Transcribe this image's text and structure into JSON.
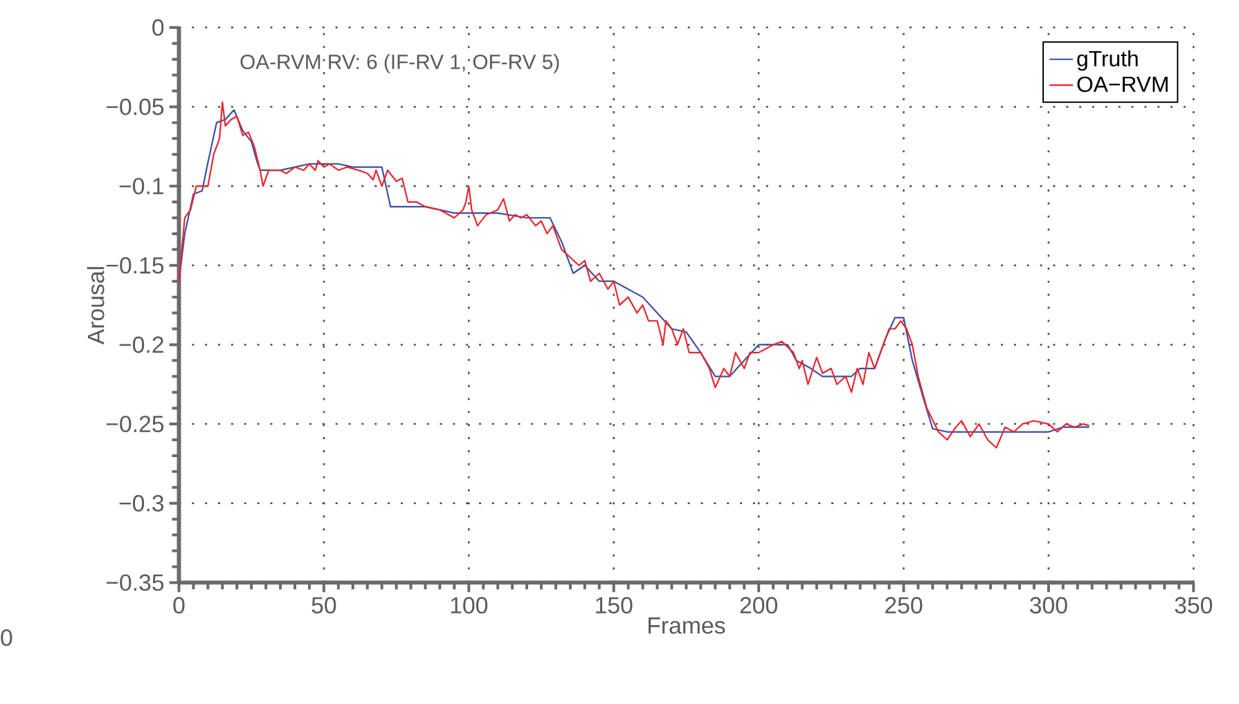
{
  "chart_data": {
    "type": "line",
    "xlabel": "Frames",
    "ylabel": "Arousal",
    "annotations": [
      "OA-RVM RV: 6 (IF-RV 1, OF-RV  5)",
      "0"
    ],
    "xlim": [
      0,
      350
    ],
    "xticks": [
      0,
      50,
      100,
      150,
      200,
      250,
      300,
      350
    ],
    "ylim": [
      -0.35,
      0
    ],
    "yticks": [
      {
        "value": -0.35,
        "label": "−0.35"
      },
      {
        "value": -0.3,
        "label": "−0.3"
      },
      {
        "value": -0.25,
        "label": "−0.25"
      },
      {
        "value": -0.2,
        "label": "−0.2"
      },
      {
        "value": -0.15,
        "label": "−0.15"
      },
      {
        "value": -0.1,
        "label": "−0.1"
      },
      {
        "value": -0.05,
        "label": "−0.05"
      },
      0
    ],
    "grid": true,
    "legend": "top right",
    "series": [
      {
        "name": "gTruth",
        "color": "#3a4fa8",
        "x": [
          0,
          2,
          5,
          8,
          10,
          13,
          16,
          19,
          22,
          25,
          27,
          28,
          35,
          40,
          45,
          55,
          60,
          70,
          73,
          85,
          95,
          110,
          120,
          128,
          132,
          136,
          140,
          145,
          150,
          155,
          160,
          165,
          170,
          175,
          180,
          185,
          190,
          195,
          200,
          210,
          213,
          218,
          222,
          232,
          235,
          240,
          244,
          247,
          250,
          253,
          257,
          260,
          265,
          300,
          305,
          314
        ],
        "values": [
          -0.16,
          -0.13,
          -0.105,
          -0.103,
          -0.085,
          -0.06,
          -0.058,
          -0.052,
          -0.065,
          -0.072,
          -0.085,
          -0.09,
          -0.09,
          -0.088,
          -0.086,
          -0.086,
          -0.088,
          -0.088,
          -0.113,
          -0.113,
          -0.117,
          -0.117,
          -0.12,
          -0.12,
          -0.135,
          -0.155,
          -0.15,
          -0.16,
          -0.16,
          -0.165,
          -0.17,
          -0.18,
          -0.19,
          -0.192,
          -0.205,
          -0.22,
          -0.22,
          -0.21,
          -0.2,
          -0.2,
          -0.21,
          -0.215,
          -0.22,
          -0.22,
          -0.215,
          -0.215,
          -0.195,
          -0.183,
          -0.183,
          -0.21,
          -0.235,
          -0.253,
          -0.255,
          -0.255,
          -0.252,
          -0.252
        ]
      },
      {
        "name": "OA−RVM",
        "color": "#e8262e",
        "x": [
          0,
          2,
          4,
          6,
          10,
          12,
          14,
          15,
          16,
          18,
          20,
          22,
          24,
          26,
          28,
          29,
          31,
          35,
          37,
          40,
          43,
          45,
          47,
          48,
          50,
          52,
          55,
          58,
          62,
          65,
          67,
          68,
          70,
          72,
          75,
          77,
          79,
          82,
          85,
          90,
          95,
          98,
          99,
          100,
          101,
          103,
          106,
          110,
          112,
          114,
          116,
          118,
          120,
          123,
          125,
          127,
          129,
          132,
          135,
          138,
          140,
          142,
          145,
          148,
          150,
          152,
          155,
          158,
          160,
          162,
          165,
          167,
          168,
          170,
          172,
          174,
          176,
          180,
          183,
          185,
          188,
          190,
          192,
          195,
          197,
          200,
          205,
          208,
          212,
          214,
          215,
          217,
          220,
          222,
          225,
          227,
          230,
          232,
          234,
          236,
          238,
          240,
          243,
          245,
          247,
          249,
          251,
          253,
          255,
          258,
          262,
          265,
          268,
          270,
          273,
          276,
          279,
          282,
          285,
          288,
          291,
          295,
          300,
          303,
          306,
          309,
          312,
          314
        ],
        "values": [
          -0.16,
          -0.12,
          -0.115,
          -0.1,
          -0.1,
          -0.08,
          -0.07,
          -0.047,
          -0.062,
          -0.058,
          -0.056,
          -0.068,
          -0.066,
          -0.075,
          -0.09,
          -0.1,
          -0.09,
          -0.09,
          -0.092,
          -0.088,
          -0.09,
          -0.086,
          -0.09,
          -0.084,
          -0.088,
          -0.086,
          -0.09,
          -0.088,
          -0.09,
          -0.092,
          -0.096,
          -0.09,
          -0.1,
          -0.09,
          -0.097,
          -0.095,
          -0.11,
          -0.11,
          -0.113,
          -0.115,
          -0.12,
          -0.115,
          -0.11,
          -0.1,
          -0.115,
          -0.125,
          -0.118,
          -0.115,
          -0.108,
          -0.122,
          -0.118,
          -0.12,
          -0.118,
          -0.125,
          -0.122,
          -0.13,
          -0.125,
          -0.14,
          -0.145,
          -0.15,
          -0.147,
          -0.16,
          -0.155,
          -0.165,
          -0.16,
          -0.175,
          -0.17,
          -0.18,
          -0.175,
          -0.185,
          -0.185,
          -0.2,
          -0.185,
          -0.19,
          -0.2,
          -0.19,
          -0.205,
          -0.205,
          -0.215,
          -0.227,
          -0.215,
          -0.22,
          -0.205,
          -0.215,
          -0.205,
          -0.205,
          -0.2,
          -0.198,
          -0.205,
          -0.215,
          -0.21,
          -0.225,
          -0.208,
          -0.218,
          -0.215,
          -0.225,
          -0.22,
          -0.23,
          -0.215,
          -0.225,
          -0.205,
          -0.215,
          -0.2,
          -0.19,
          -0.19,
          -0.185,
          -0.19,
          -0.2,
          -0.22,
          -0.24,
          -0.255,
          -0.26,
          -0.252,
          -0.248,
          -0.258,
          -0.25,
          -0.26,
          -0.265,
          -0.252,
          -0.255,
          -0.25,
          -0.248,
          -0.25,
          -0.255,
          -0.25,
          -0.252,
          -0.25,
          -0.251
        ]
      }
    ]
  }
}
